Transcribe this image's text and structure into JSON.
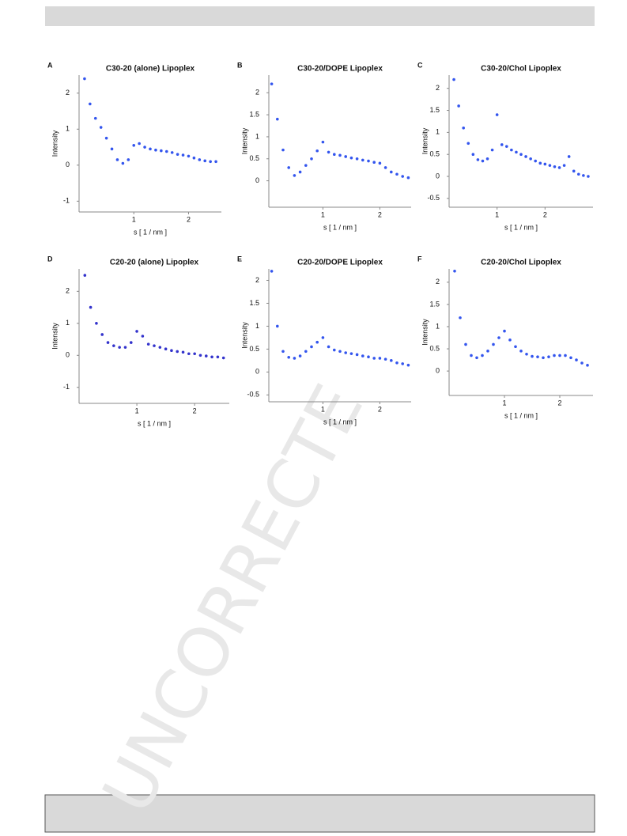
{
  "watermark": "UNCORRECTE",
  "chart_data": [
    {
      "type": "scatter",
      "panel": "A",
      "title": "C30-20 (alone) Lipoplex",
      "xlabel": "s [ 1 / nm ]",
      "ylabel": "Intensity",
      "color": "#3355ee",
      "x": [
        0.1,
        0.2,
        0.3,
        0.4,
        0.5,
        0.6,
        0.7,
        0.8,
        0.9,
        1.0,
        1.1,
        1.2,
        1.3,
        1.4,
        1.5,
        1.6,
        1.7,
        1.8,
        1.9,
        2.0,
        2.1,
        2.2,
        2.3,
        2.4,
        2.5
      ],
      "values": [
        2.4,
        1.7,
        1.3,
        1.05,
        0.75,
        0.45,
        0.15,
        0.05,
        0.15,
        0.55,
        0.6,
        0.5,
        0.45,
        0.42,
        0.4,
        0.38,
        0.35,
        0.3,
        0.28,
        0.25,
        0.2,
        0.15,
        0.12,
        0.1,
        0.1
      ],
      "xlim": [
        0,
        2.6
      ],
      "xticks": [
        1,
        2
      ],
      "ylim": [
        -1.3,
        2.5
      ],
      "yticks": [
        -1,
        0,
        1,
        2
      ]
    },
    {
      "type": "scatter",
      "panel": "B",
      "title": "C30-20/DOPE Lipoplex",
      "xlabel": "s [ 1 / nm ]",
      "ylabel": "Intensity",
      "color": "#3355ee",
      "x": [
        0.1,
        0.2,
        0.3,
        0.4,
        0.5,
        0.6,
        0.7,
        0.8,
        0.9,
        1.0,
        1.1,
        1.2,
        1.3,
        1.4,
        1.5,
        1.6,
        1.7,
        1.8,
        1.9,
        2.0,
        2.1,
        2.2,
        2.3,
        2.4,
        2.5
      ],
      "values": [
        2.2,
        1.4,
        0.7,
        0.3,
        0.12,
        0.2,
        0.35,
        0.5,
        0.68,
        0.88,
        0.65,
        0.6,
        0.58,
        0.55,
        0.52,
        0.5,
        0.47,
        0.45,
        0.42,
        0.4,
        0.3,
        0.2,
        0.15,
        0.1,
        0.07
      ],
      "xlim": [
        0.05,
        2.55
      ],
      "xticks": [
        1,
        2
      ],
      "ylim": [
        -0.6,
        2.4
      ],
      "yticks": [
        0,
        0.5,
        1,
        1.5,
        2
      ]
    },
    {
      "type": "scatter",
      "panel": "C",
      "title": "C30-20/Chol Lipoplex",
      "xlabel": "s [ 1 / nm ]",
      "ylabel": "Intensity",
      "color": "#3355ee",
      "x": [
        0.1,
        0.2,
        0.3,
        0.4,
        0.5,
        0.6,
        0.7,
        0.8,
        0.9,
        1.0,
        1.1,
        1.2,
        1.3,
        1.4,
        1.5,
        1.6,
        1.7,
        1.8,
        1.9,
        2.0,
        2.1,
        2.2,
        2.3,
        2.4,
        2.5,
        2.6,
        2.7,
        2.8,
        2.9
      ],
      "values": [
        2.2,
        1.6,
        1.1,
        0.75,
        0.5,
        0.38,
        0.35,
        0.4,
        0.6,
        1.4,
        0.72,
        0.68,
        0.6,
        0.55,
        0.5,
        0.45,
        0.4,
        0.35,
        0.3,
        0.28,
        0.25,
        0.22,
        0.2,
        0.25,
        0.45,
        0.12,
        0.05,
        0.02,
        0.0
      ],
      "xlim": [
        0,
        3
      ],
      "xticks": [
        1,
        2
      ],
      "ylim": [
        -0.7,
        2.3
      ],
      "yticks": [
        -0.5,
        0,
        0.5,
        1,
        1.5,
        2
      ]
    },
    {
      "type": "scatter",
      "panel": "D",
      "title": "C20-20 (alone) Lipoplex",
      "xlabel": "s [ 1 / nm ]",
      "ylabel": "Intensity",
      "color": "#3333cc",
      "x": [
        0.1,
        0.2,
        0.3,
        0.4,
        0.5,
        0.6,
        0.7,
        0.8,
        0.9,
        1.0,
        1.1,
        1.2,
        1.3,
        1.4,
        1.5,
        1.6,
        1.7,
        1.8,
        1.9,
        2.0,
        2.1,
        2.2,
        2.3,
        2.4,
        2.5
      ],
      "values": [
        2.5,
        1.5,
        1.0,
        0.65,
        0.4,
        0.3,
        0.25,
        0.25,
        0.4,
        0.75,
        0.6,
        0.35,
        0.3,
        0.25,
        0.2,
        0.15,
        0.12,
        0.1,
        0.05,
        0.05,
        0.0,
        -0.02,
        -0.05,
        -0.05,
        -0.08
      ],
      "xlim": [
        0,
        2.6
      ],
      "xticks": [
        1,
        2
      ],
      "ylim": [
        -1.5,
        2.7
      ],
      "yticks": [
        -1,
        0,
        1,
        2
      ]
    },
    {
      "type": "scatter",
      "panel": "E",
      "title": "C20-20/DOPE Lipoplex",
      "xlabel": "s [ 1 / nm ]",
      "ylabel": "Intensity",
      "color": "#3355ee",
      "x": [
        0.1,
        0.2,
        0.3,
        0.4,
        0.5,
        0.6,
        0.7,
        0.8,
        0.9,
        1.0,
        1.1,
        1.2,
        1.3,
        1.4,
        1.5,
        1.6,
        1.7,
        1.8,
        1.9,
        2.0,
        2.1,
        2.2,
        2.3,
        2.4,
        2.5
      ],
      "values": [
        2.2,
        1.0,
        0.45,
        0.32,
        0.3,
        0.35,
        0.45,
        0.55,
        0.65,
        0.75,
        0.55,
        0.48,
        0.45,
        0.42,
        0.4,
        0.38,
        0.35,
        0.33,
        0.3,
        0.3,
        0.28,
        0.25,
        0.2,
        0.18,
        0.15
      ],
      "xlim": [
        0.05,
        2.55
      ],
      "xticks": [
        1,
        2
      ],
      "ylim": [
        -0.65,
        2.25
      ],
      "yticks": [
        -0.5,
        0,
        0.5,
        1,
        1.5,
        2
      ]
    },
    {
      "type": "scatter",
      "panel": "F",
      "title": "C20-20/Chol Lipoplex",
      "xlabel": "s [ 1 / nm ]",
      "ylabel": "Intensity",
      "color": "#3355ee",
      "x": [
        0.1,
        0.2,
        0.3,
        0.4,
        0.5,
        0.6,
        0.7,
        0.8,
        0.9,
        1.0,
        1.1,
        1.2,
        1.3,
        1.4,
        1.5,
        1.6,
        1.7,
        1.8,
        1.9,
        2.0,
        2.1,
        2.2,
        2.3,
        2.4,
        2.5
      ],
      "values": [
        2.25,
        1.2,
        0.6,
        0.35,
        0.3,
        0.35,
        0.45,
        0.6,
        0.75,
        0.9,
        0.7,
        0.55,
        0.45,
        0.38,
        0.33,
        0.32,
        0.3,
        0.32,
        0.35,
        0.35,
        0.35,
        0.3,
        0.25,
        0.18,
        0.13
      ],
      "xlim": [
        0,
        2.6
      ],
      "xticks": [
        1,
        2
      ],
      "ylim": [
        -0.55,
        2.3
      ],
      "yticks": [
        0,
        0.5,
        1,
        1.5,
        2
      ]
    }
  ]
}
